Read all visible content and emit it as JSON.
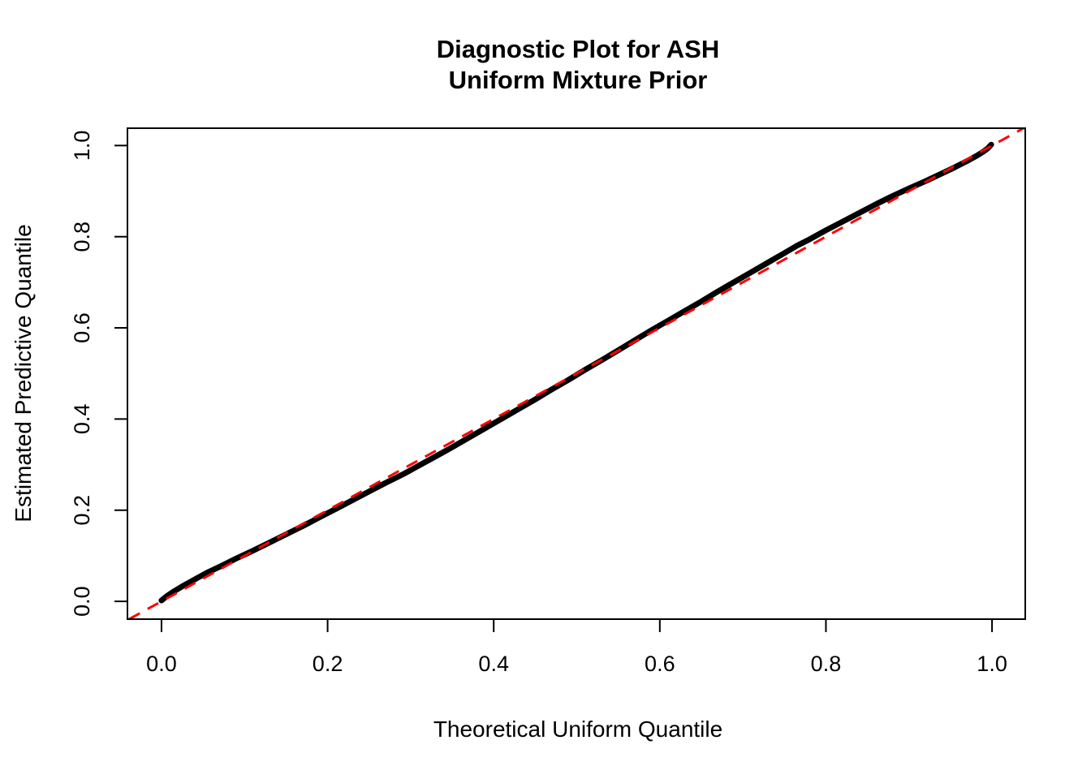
{
  "page": {
    "background_color": "#FFFFFF",
    "text_color": "#000000"
  },
  "chart_data": {
    "type": "line",
    "title_lines": [
      "Diagnostic Plot for ASH",
      "Uniform Mixture Prior"
    ],
    "xlabel": "Theoretical Uniform Quantile",
    "ylabel": "Estimated Predictive Quantile",
    "axes": {
      "xlim": [
        -0.041,
        1.04
      ],
      "ylim": [
        -0.039,
        1.038
      ],
      "x_ticks": [
        0.0,
        0.2,
        0.4,
        0.6,
        0.8,
        1.0
      ],
      "x_tick_labels": [
        "0.0",
        "0.2",
        "0.4",
        "0.6",
        "0.8",
        "1.0"
      ],
      "y_ticks": [
        0.0,
        0.2,
        0.4,
        0.6,
        0.8,
        1.0
      ],
      "y_tick_labels": [
        "0.0",
        "0.2",
        "0.4",
        "0.6",
        "0.8",
        "1.0"
      ],
      "grid": false
    },
    "legend": null,
    "series": [
      {
        "name": "estimated-predictive-quantile-curve",
        "color": "#000000",
        "style": "solid",
        "line_width": 7,
        "points": [
          [
            0.0,
            0.002
          ],
          [
            0.006,
            0.011
          ],
          [
            0.015,
            0.022
          ],
          [
            0.025,
            0.033
          ],
          [
            0.04,
            0.048
          ],
          [
            0.055,
            0.063
          ],
          [
            0.07,
            0.076
          ],
          [
            0.09,
            0.094
          ],
          [
            0.11,
            0.111
          ],
          [
            0.13,
            0.129
          ],
          [
            0.15,
            0.147
          ],
          [
            0.17,
            0.165
          ],
          [
            0.19,
            0.184
          ],
          [
            0.21,
            0.203
          ],
          [
            0.23,
            0.222
          ],
          [
            0.25,
            0.241
          ],
          [
            0.27,
            0.26
          ],
          [
            0.29,
            0.278
          ],
          [
            0.31,
            0.298
          ],
          [
            0.33,
            0.318
          ],
          [
            0.35,
            0.338
          ],
          [
            0.37,
            0.359
          ],
          [
            0.39,
            0.38
          ],
          [
            0.41,
            0.401
          ],
          [
            0.43,
            0.422
          ],
          [
            0.45,
            0.443
          ],
          [
            0.47,
            0.465
          ],
          [
            0.49,
            0.486
          ],
          [
            0.51,
            0.508
          ],
          [
            0.53,
            0.529
          ],
          [
            0.55,
            0.551
          ],
          [
            0.57,
            0.573
          ],
          [
            0.59,
            0.595
          ],
          [
            0.61,
            0.616
          ],
          [
            0.63,
            0.637
          ],
          [
            0.65,
            0.658
          ],
          [
            0.67,
            0.68
          ],
          [
            0.69,
            0.701
          ],
          [
            0.71,
            0.722
          ],
          [
            0.73,
            0.743
          ],
          [
            0.75,
            0.764
          ],
          [
            0.765,
            0.78
          ],
          [
            0.78,
            0.794
          ],
          [
            0.8,
            0.814
          ],
          [
            0.82,
            0.833
          ],
          [
            0.84,
            0.852
          ],
          [
            0.86,
            0.871
          ],
          [
            0.88,
            0.889
          ],
          [
            0.9,
            0.906
          ],
          [
            0.92,
            0.922
          ],
          [
            0.94,
            0.939
          ],
          [
            0.955,
            0.952
          ],
          [
            0.97,
            0.966
          ],
          [
            0.982,
            0.978
          ],
          [
            0.99,
            0.987
          ],
          [
            0.995,
            0.994
          ],
          [
            0.998,
            1.0
          ],
          [
            0.999,
            1.002
          ]
        ]
      }
    ],
    "reference_line": {
      "name": "identity-diagonal",
      "equation": "y = x",
      "color": "#FF0000",
      "style": "dashed",
      "from": [
        -0.039,
        -0.039
      ],
      "to": [
        1.038,
        1.038
      ],
      "line_width": 3
    }
  }
}
